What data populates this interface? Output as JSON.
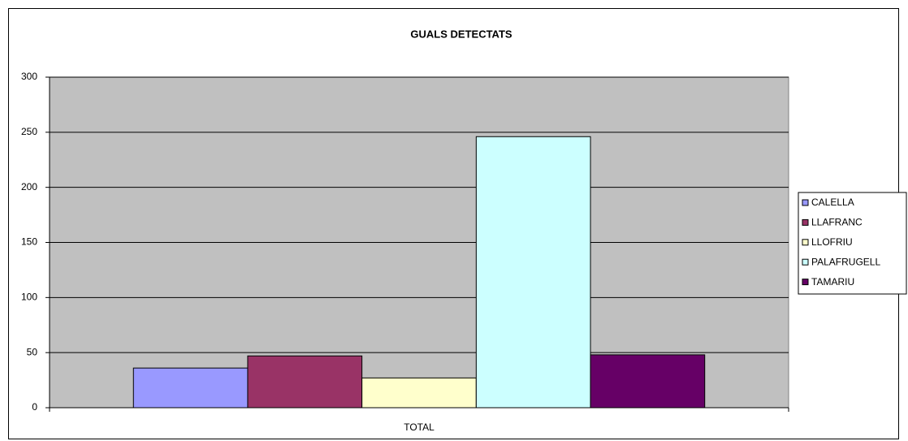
{
  "chart_data": {
    "type": "bar",
    "title": "GUALS DETECTATS",
    "categories": [
      "TOTAL"
    ],
    "series": [
      {
        "name": "CALELLA",
        "color": "#9999ff",
        "values": [
          36
        ]
      },
      {
        "name": "LLAFRANC",
        "color": "#993366",
        "values": [
          47
        ]
      },
      {
        "name": "LLOFRIU",
        "color": "#ffffcc",
        "values": [
          27
        ]
      },
      {
        "name": "PALAFRUGELL",
        "color": "#ccffff",
        "values": [
          246
        ]
      },
      {
        "name": "TAMARIU",
        "color": "#660066",
        "values": [
          48
        ]
      }
    ],
    "ylim": [
      0,
      300
    ],
    "yticks": [
      0,
      50,
      100,
      150,
      200,
      250,
      300
    ],
    "grid": true,
    "legend": "right"
  }
}
